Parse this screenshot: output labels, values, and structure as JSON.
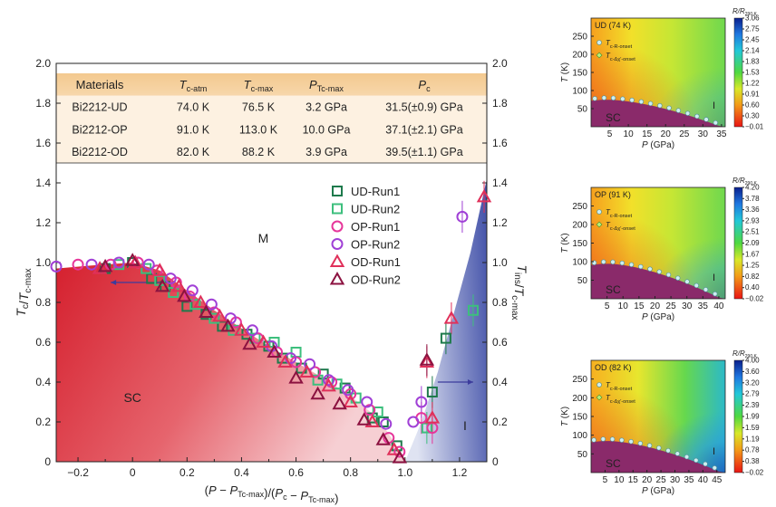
{
  "main": {
    "table": {
      "headers": [
        "Materials",
        "T_c-atm",
        "T_c-max",
        "P_Tc-max",
        "P_c"
      ],
      "rows": [
        [
          "Bi2212-UD",
          "74.0 K",
          "76.5 K",
          "3.2 GPa",
          "31.5(±0.9) GPa"
        ],
        [
          "Bi2212-OP",
          "91.0 K",
          "113.0 K",
          "10.0 GPa",
          "37.1(±2.1) GPa"
        ],
        [
          "Bi2212-OD",
          "82.0 K",
          "88.2 K",
          "3.9 GPa",
          "39.5(±1.1) GPa"
        ]
      ]
    },
    "region_labels": {
      "sc": "SC",
      "m": "M",
      "i": "I"
    },
    "legend": [
      "UD-Run1",
      "UD-Run2",
      "OP-Run1",
      "OP-Run2",
      "OD-Run1",
      "OD-Run2"
    ],
    "xlabel": "(P − P_Tc-max)/(P_c − P_Tc-max)",
    "ylabel_left": "T_c/T_c-max",
    "ylabel_right": "T_ins/T_c-max",
    "xticks": [
      "−0.2",
      "0",
      "0.2",
      "0.4",
      "0.6",
      "0.8",
      "1.0",
      "1.2"
    ],
    "yticks": [
      "0",
      "0.2",
      "0.4",
      "0.6",
      "0.8",
      "1.0",
      "1.2",
      "1.4",
      "1.6",
      "1.8",
      "2.0"
    ]
  },
  "chart_data": [
    {
      "type": "scatter",
      "xlim": [
        -0.28,
        1.3
      ],
      "ylim": [
        0,
        2.0
      ],
      "legend_position": "top-right",
      "series": [
        {
          "name": "UD-Run1",
          "color": "#1e7a4c",
          "marker": "square-open",
          "points": [
            [
              -0.1,
              0.97
            ],
            [
              0.0,
              1.0
            ],
            [
              0.07,
              0.92
            ],
            [
              0.12,
              0.88
            ],
            [
              0.2,
              0.78
            ],
            [
              0.27,
              0.74
            ],
            [
              0.33,
              0.68
            ],
            [
              0.42,
              0.64
            ],
            [
              0.5,
              0.58
            ],
            [
              0.55,
              0.52
            ],
            [
              0.62,
              0.47
            ],
            [
              0.7,
              0.44
            ],
            [
              0.78,
              0.37
            ],
            [
              0.88,
              0.22
            ],
            [
              0.92,
              0.2
            ],
            [
              0.97,
              0.08
            ],
            [
              1.1,
              0.35
            ],
            [
              1.15,
              0.62
            ]
          ]
        },
        {
          "name": "UD-Run2",
          "color": "#3dbf7d",
          "marker": "square-open",
          "points": [
            [
              -0.05,
              0.99
            ],
            [
              0.05,
              0.97
            ],
            [
              0.1,
              0.91
            ],
            [
              0.15,
              0.85
            ],
            [
              0.23,
              0.79
            ],
            [
              0.3,
              0.72
            ],
            [
              0.37,
              0.66
            ],
            [
              0.45,
              0.62
            ],
            [
              0.52,
              0.6
            ],
            [
              0.6,
              0.55
            ],
            [
              0.68,
              0.41
            ],
            [
              0.75,
              0.39
            ],
            [
              0.82,
              0.32
            ],
            [
              0.9,
              0.25
            ],
            [
              1.08,
              0.17
            ],
            [
              1.25,
              0.76
            ]
          ]
        },
        {
          "name": "OP-Run1",
          "color": "#e6369a",
          "marker": "circle-open",
          "points": [
            [
              -0.2,
              0.99
            ],
            [
              -0.08,
              0.99
            ],
            [
              0.02,
              1.0
            ],
            [
              0.09,
              0.96
            ],
            [
              0.16,
              0.9
            ],
            [
              0.21,
              0.83
            ],
            [
              0.3,
              0.75
            ],
            [
              0.38,
              0.7
            ],
            [
              0.46,
              0.62
            ],
            [
              0.53,
              0.55
            ],
            [
              0.6,
              0.5
            ],
            [
              0.67,
              0.45
            ],
            [
              0.73,
              0.4
            ],
            [
              0.8,
              0.34
            ],
            [
              0.87,
              0.26
            ],
            [
              0.94,
              0.12
            ],
            [
              0.98,
              0.05
            ],
            [
              1.06,
              0.22
            ],
            [
              1.1,
              0.17
            ]
          ]
        },
        {
          "name": "OP-Run2",
          "color": "#a040d6",
          "marker": "circle-open",
          "points": [
            [
              -0.28,
              0.98
            ],
            [
              -0.15,
              0.99
            ],
            [
              -0.05,
              1.0
            ],
            [
              0.06,
              0.99
            ],
            [
              0.14,
              0.92
            ],
            [
              0.22,
              0.86
            ],
            [
              0.29,
              0.79
            ],
            [
              0.36,
              0.72
            ],
            [
              0.44,
              0.66
            ],
            [
              0.51,
              0.58
            ],
            [
              0.58,
              0.52
            ],
            [
              0.65,
              0.49
            ],
            [
              0.72,
              0.41
            ],
            [
              0.79,
              0.36
            ],
            [
              0.86,
              0.3
            ],
            [
              0.93,
              0.19
            ],
            [
              1.03,
              0.2
            ],
            [
              1.06,
              0.3
            ],
            [
              1.21,
              1.23
            ]
          ]
        },
        {
          "name": "OD-Run1",
          "color": "#e0305a",
          "marker": "triangle-open",
          "points": [
            [
              -0.12,
              0.97
            ],
            [
              0.01,
              1.0
            ],
            [
              0.1,
              0.96
            ],
            [
              0.17,
              0.88
            ],
            [
              0.25,
              0.8
            ],
            [
              0.32,
              0.73
            ],
            [
              0.4,
              0.66
            ],
            [
              0.48,
              0.6
            ],
            [
              0.56,
              0.5
            ],
            [
              0.64,
              0.45
            ],
            [
              0.72,
              0.38
            ],
            [
              0.8,
              0.3
            ],
            [
              0.88,
              0.2
            ],
            [
              0.96,
              0.06
            ],
            [
              1.08,
              0.5
            ],
            [
              1.1,
              0.22
            ],
            [
              1.17,
              0.72
            ],
            [
              1.29,
              1.33
            ]
          ]
        },
        {
          "name": "OD-Run2",
          "color": "#8c1240",
          "marker": "triangle-open",
          "points": [
            [
              -0.1,
              0.98
            ],
            [
              0.0,
              1.01
            ],
            [
              0.11,
              0.88
            ],
            [
              0.19,
              0.83
            ],
            [
              0.27,
              0.75
            ],
            [
              0.35,
              0.68
            ],
            [
              0.43,
              0.59
            ],
            [
              0.52,
              0.55
            ],
            [
              0.6,
              0.42
            ],
            [
              0.68,
              0.34
            ],
            [
              0.76,
              0.29
            ],
            [
              0.85,
              0.21
            ],
            [
              0.92,
              0.11
            ],
            [
              0.98,
              0.02
            ],
            [
              1.08,
              0.51
            ]
          ]
        }
      ]
    },
    {
      "type": "heatmap",
      "title": "UD (74 K)",
      "xlabel": "P (GPa)",
      "ylabel": "T (K)",
      "xlim": [
        0,
        36
      ],
      "ylim": [
        0,
        300
      ],
      "xticks": [
        "5",
        "10",
        "15",
        "20",
        "25",
        "30",
        "35"
      ],
      "yticks": [
        "50",
        "100",
        "150",
        "200",
        "250"
      ],
      "colorbar_label": "R/R_290 K",
      "colorbar_ticks": [
        "3.06",
        "2.75",
        "2.45",
        "2.14",
        "1.83",
        "1.53",
        "1.22",
        "0.91",
        "0.60",
        "0.30",
        "−0.01"
      ],
      "legend": [
        "T_c-R-onset",
        "T_c-Δχ′-onset"
      ],
      "region_labels": {
        "sc": "SC",
        "i": "I"
      }
    },
    {
      "type": "heatmap",
      "title": "OP (91 K)",
      "xlabel": "P (GPa)",
      "ylabel": "T (K)",
      "xlim": [
        0,
        42
      ],
      "ylim": [
        0,
        300
      ],
      "xticks": [
        "5",
        "10",
        "15",
        "20",
        "25",
        "30",
        "35",
        "40"
      ],
      "yticks": [
        "50",
        "100",
        "150",
        "200",
        "250"
      ],
      "colorbar_label": "R/R_290 K",
      "colorbar_ticks": [
        "4.20",
        "3.78",
        "3.36",
        "2.93",
        "2.51",
        "2.09",
        "1.67",
        "1.25",
        "0.82",
        "0.40",
        "−0.02"
      ],
      "legend": [
        "T_c-R-onset",
        "T_c-Δχ′-onset"
      ],
      "region_labels": {
        "sc": "SC",
        "i": "I"
      }
    },
    {
      "type": "heatmap",
      "title": "OD (82 K)",
      "xlabel": "P (GPa)",
      "ylabel": "T (K)",
      "xlim": [
        0,
        48
      ],
      "ylim": [
        0,
        300
      ],
      "xticks": [
        "5",
        "10",
        "15",
        "20",
        "25",
        "30",
        "35",
        "40",
        "45"
      ],
      "yticks": [
        "50",
        "100",
        "150",
        "200",
        "250"
      ],
      "colorbar_label": "R/R_290 K",
      "colorbar_ticks": [
        "4.00",
        "3.60",
        "3.20",
        "2.79",
        "2.39",
        "1.99",
        "1.59",
        "1.19",
        "0.78",
        "0.38",
        "−0.02"
      ],
      "legend": [
        "T_c-R-onset",
        "T_c-Δχ′-onset"
      ],
      "region_labels": {
        "sc": "SC",
        "i": "I"
      }
    }
  ]
}
